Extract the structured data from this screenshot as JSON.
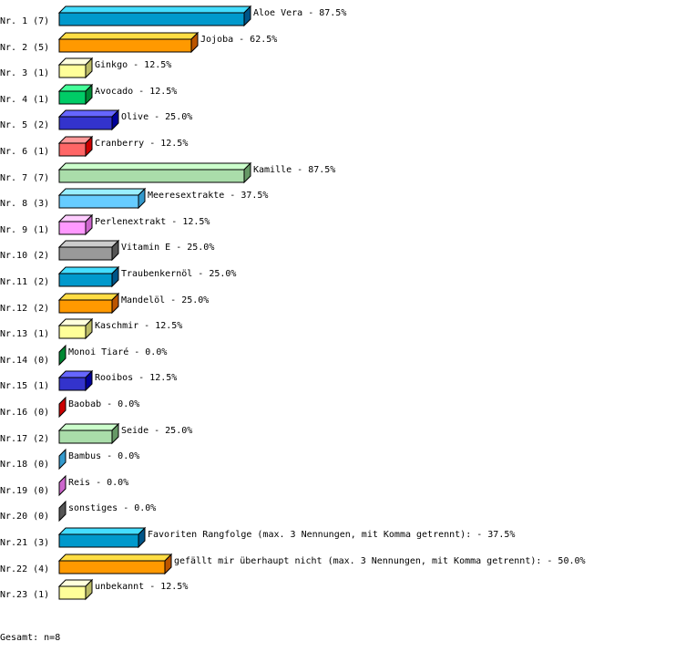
{
  "chart_data": {
    "type": "bar",
    "orientation": "horizontal",
    "style": "3d",
    "grid": false,
    "rows": [
      {
        "label": "Nr. 1 (7)",
        "name": "Aloe Vera",
        "count": 7,
        "percent": "87.5%"
      },
      {
        "label": "Nr. 2 (5)",
        "name": "Jojoba",
        "count": 5,
        "percent": "62.5%"
      },
      {
        "label": "Nr. 3 (1)",
        "name": "Ginkgo",
        "count": 1,
        "percent": "12.5%"
      },
      {
        "label": "Nr. 4 (1)",
        "name": "Avocado",
        "count": 1,
        "percent": "12.5%"
      },
      {
        "label": "Nr. 5 (2)",
        "name": "Olive",
        "count": 2,
        "percent": "25.0%"
      },
      {
        "label": "Nr. 6 (1)",
        "name": "Cranberry",
        "count": 1,
        "percent": "12.5%"
      },
      {
        "label": "Nr. 7 (7)",
        "name": "Kamille",
        "count": 7,
        "percent": "87.5%"
      },
      {
        "label": "Nr. 8 (3)",
        "name": "Meeresextrakte",
        "count": 3,
        "percent": "37.5%"
      },
      {
        "label": "Nr. 9 (1)",
        "name": "Perlenextrakt",
        "count": 1,
        "percent": "12.5%"
      },
      {
        "label": "Nr.10 (2)",
        "name": "Vitamin E",
        "count": 2,
        "percent": "25.0%"
      },
      {
        "label": "Nr.11 (2)",
        "name": "Traubenkernöl",
        "count": 2,
        "percent": "25.0%"
      },
      {
        "label": "Nr.12 (2)",
        "name": "Mandelöl",
        "count": 2,
        "percent": "25.0%"
      },
      {
        "label": "Nr.13 (1)",
        "name": "Kaschmir",
        "count": 1,
        "percent": "12.5%"
      },
      {
        "label": "Nr.14 (0)",
        "name": "Monoi Tiaré",
        "count": 0,
        "percent": "0.0%"
      },
      {
        "label": "Nr.15 (1)",
        "name": "Rooibos",
        "count": 1,
        "percent": "12.5%"
      },
      {
        "label": "Nr.16 (0)",
        "name": "Baobab",
        "count": 0,
        "percent": "0.0%"
      },
      {
        "label": "Nr.17 (2)",
        "name": "Seide",
        "count": 2,
        "percent": "25.0%"
      },
      {
        "label": "Nr.18 (0)",
        "name": "Bambus",
        "count": 0,
        "percent": "0.0%"
      },
      {
        "label": "Nr.19 (0)",
        "name": "Reis",
        "count": 0,
        "percent": "0.0%"
      },
      {
        "label": "Nr.20 (0)",
        "name": "sonstiges",
        "count": 0,
        "percent": "0.0%"
      },
      {
        "label": "Nr.21 (3)",
        "name": "Favoriten Rangfolge (max. 3 Nennungen, mit Komma getrennt):",
        "count": 3,
        "percent": "37.5%"
      },
      {
        "label": "Nr.22 (4)",
        "name": "gefällt mir überhaupt nicht (max. 3 Nennungen, mit Komma getrennt):",
        "count": 4,
        "percent": "50.0%"
      },
      {
        "label": "Nr.23 (1)",
        "name": "unbekannt",
        "count": 1,
        "percent": "12.5%"
      }
    ],
    "palette": [
      {
        "front": "#0099cc",
        "top": "#44ddff",
        "side": "#005588"
      },
      {
        "front": "#ff9900",
        "top": "#ffdd44",
        "side": "#bb5500"
      },
      {
        "front": "#ffff99",
        "top": "#ffffdd",
        "side": "#bbbb66"
      },
      {
        "front": "#00cc66",
        "top": "#44ff99",
        "side": "#008833"
      },
      {
        "front": "#3333cc",
        "top": "#6666ff",
        "side": "#000099"
      },
      {
        "front": "#ff6666",
        "top": "#ff9999",
        "side": "#cc0000"
      },
      {
        "front": "#aaddaa",
        "top": "#ccffcc",
        "side": "#669966"
      },
      {
        "front": "#66ccff",
        "top": "#99eeff",
        "side": "#3399cc"
      },
      {
        "front": "#ff99ff",
        "top": "#ffccff",
        "side": "#cc66cc"
      },
      {
        "front": "#999999",
        "top": "#cccccc",
        "side": "#555555"
      }
    ],
    "total": "Gesamt: n=8"
  }
}
